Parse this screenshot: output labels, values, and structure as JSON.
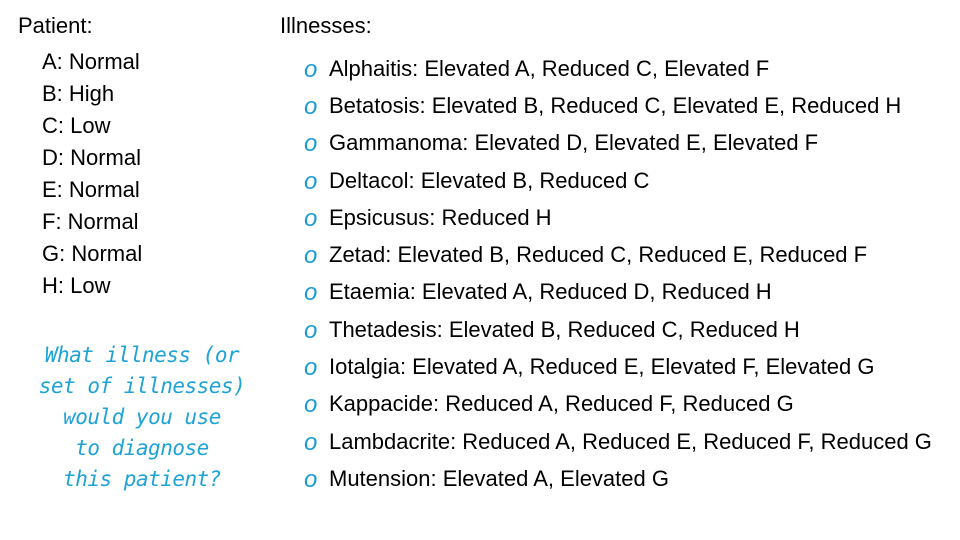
{
  "patient": {
    "heading": "Patient:",
    "levels": [
      "A: Normal",
      "B: High",
      "C: Low",
      "D: Normal",
      "E: Normal",
      "F: Normal",
      "G: Normal",
      "H: Low"
    ]
  },
  "illnesses": {
    "heading": "Illnesses:",
    "bullet_glyph": "o",
    "bullet_color": "#1a9ad6",
    "items": [
      "Alphaitis: Elevated A, Reduced C, Elevated F",
      "Betatosis: Elevated B, Reduced C, Elevated E, Reduced H",
      "Gammanoma: Elevated D, Elevated E, Elevated F",
      "Deltacol: Elevated B, Reduced C",
      "Epsicusus: Reduced H",
      "Zetad: Elevated B, Reduced C, Reduced E, Reduced F",
      "Etaemia: Elevated A, Reduced D, Reduced H",
      "Thetadesis: Elevated B, Reduced C, Reduced H",
      "Iotalgia: Elevated A, Reduced E, Elevated F, Elevated G",
      "Kappacide: Reduced A, Reduced F, Reduced G",
      "Lambdacrite: Reduced A, Reduced E, Reduced F, Reduced G",
      "Mutension: Elevated A, Elevated G"
    ]
  },
  "question": {
    "text": "What illness (or\nset of illnesses)\nwould you use\nto diagnose\nthis patient?",
    "color": "#1fa3d6"
  }
}
